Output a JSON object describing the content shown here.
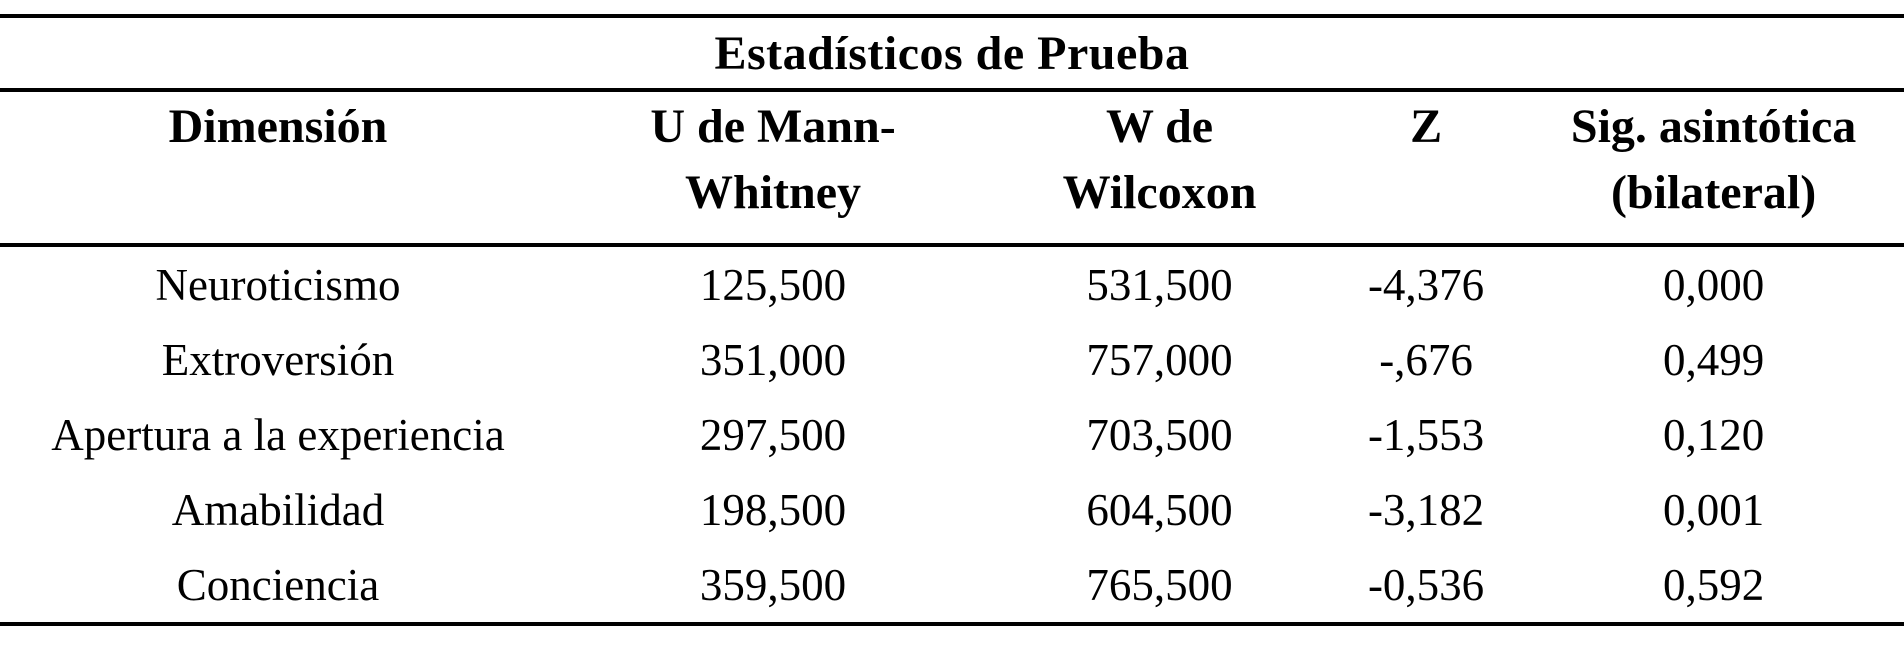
{
  "title": "Estadísticos de Prueba",
  "colors": {
    "text": "#000000",
    "background": "#ffffff",
    "rule": "#000000"
  },
  "table": {
    "columns": [
      {
        "line1": "Dimensión",
        "line2": ""
      },
      {
        "line1": "U de Mann-",
        "line2": "Whitney"
      },
      {
        "line1": "W de",
        "line2": "Wilcoxon"
      },
      {
        "line1": "Z",
        "line2": ""
      },
      {
        "line1": "Sig. asintótica",
        "line2": "(bilateral)"
      }
    ],
    "rows": [
      [
        "Neuroticismo",
        "125,500",
        "531,500",
        "-4,376",
        "0,000"
      ],
      [
        "Extroversión",
        "351,000",
        "757,000",
        "-,676",
        "0,499"
      ],
      [
        "Apertura a la experiencia",
        "297,500",
        "703,500",
        "-1,553",
        "0,120"
      ],
      [
        "Amabilidad",
        "198,500",
        "604,500",
        "-3,182",
        "0,001"
      ],
      [
        "Conciencia",
        "359,500",
        "765,500",
        "-0,536",
        "0,592"
      ]
    ]
  }
}
